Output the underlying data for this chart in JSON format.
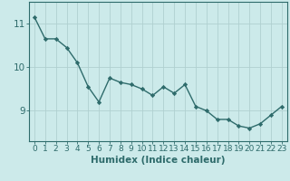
{
  "x": [
    0,
    1,
    2,
    3,
    4,
    5,
    6,
    7,
    8,
    9,
    10,
    11,
    12,
    13,
    14,
    15,
    16,
    17,
    18,
    19,
    20,
    21,
    22,
    23
  ],
  "y": [
    11.15,
    10.65,
    10.65,
    10.45,
    10.1,
    9.55,
    9.2,
    9.75,
    9.65,
    9.6,
    9.5,
    9.35,
    9.55,
    9.4,
    9.6,
    9.1,
    9.0,
    8.8,
    8.8,
    8.65,
    8.6,
    8.7,
    8.9,
    9.1
  ],
  "line_color": "#2e6b6b",
  "marker": "D",
  "marker_size": 2.2,
  "line_width": 1.0,
  "background_color": "#cceaea",
  "grid_color": "#b0d0d0",
  "xlabel": "Humidex (Indice chaleur)",
  "xlabel_fontsize": 7.5,
  "ytick_labels": [
    "9",
    "10",
    "11"
  ],
  "ytick_values": [
    9,
    10,
    11
  ],
  "ylim": [
    8.3,
    11.5
  ],
  "xlim": [
    -0.5,
    23.5
  ],
  "xtick_labels": [
    "0",
    "1",
    "2",
    "3",
    "4",
    "5",
    "6",
    "7",
    "8",
    "9",
    "10",
    "11",
    "12",
    "13",
    "14",
    "15",
    "16",
    "17",
    "18",
    "19",
    "20",
    "21",
    "22",
    "23"
  ],
  "tick_fontsize": 6.5,
  "axis_color": "#2e6b6b",
  "spine_color": "#2e6b6b"
}
